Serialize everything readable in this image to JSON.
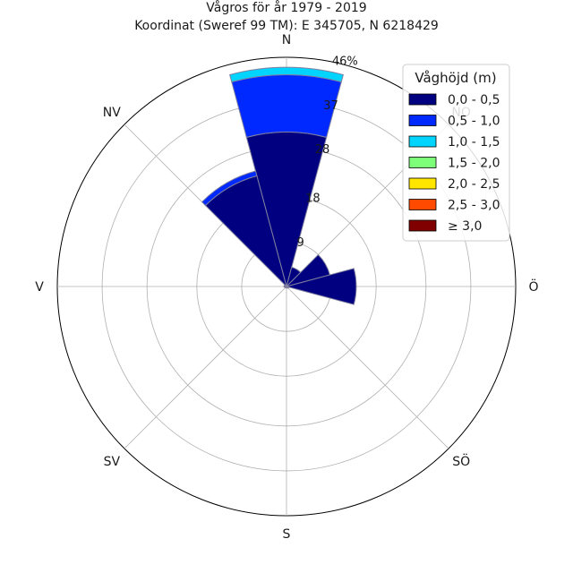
{
  "chart_data": {
    "type": "windrose",
    "title_line1": "Vågros för år 1979 - 2019",
    "title_line2": "Koordinat (Sweref 99 TM): E 345705, N 6218429",
    "directions": [
      "N",
      "NV",
      "V",
      "SV",
      "S",
      "SÖ",
      "Ö",
      "NO"
    ],
    "direction_angles_deg": [
      0,
      315,
      270,
      225,
      180,
      135,
      90,
      45
    ],
    "ring_values": [
      9,
      18,
      28,
      37,
      46
    ],
    "ring_labels": [
      "9",
      "18",
      "28",
      "37",
      "46%"
    ],
    "r_max": 46,
    "bin_width_deg": 30,
    "legend_title": "Våghöjd (m)",
    "legend_placement": "top-right",
    "bins": [
      {
        "label": "0,0 - 0,5",
        "color": "#000080"
      },
      {
        "label": "0,5 - 1,0",
        "color": "#0029ff"
      },
      {
        "label": "1,0 - 1,5",
        "color": "#00d4ff"
      },
      {
        "label": "1,5 - 2,0",
        "color": "#7dff7a"
      },
      {
        "label": "2,0 - 2,5",
        "color": "#ffe600"
      },
      {
        "label": "2,5 - 3,0",
        "color": "#ff4a00"
      },
      {
        "label": "≥ 3,0",
        "color": "#800000"
      }
    ],
    "sectors": [
      {
        "direction_deg": 0,
        "stacks": [
          31.0,
          11.5,
          1.5,
          0,
          0,
          0,
          0
        ]
      },
      {
        "direction_deg": 30,
        "stacks": [
          4.0,
          0,
          0,
          0,
          0,
          0,
          0
        ]
      },
      {
        "direction_deg": 60,
        "stacks": [
          9.0,
          0,
          0,
          0,
          0,
          0,
          0
        ]
      },
      {
        "direction_deg": 90,
        "stacks": [
          14.0,
          0,
          0,
          0,
          0,
          0,
          0
        ]
      },
      {
        "direction_deg": 120,
        "stacks": [
          0.5,
          0,
          0,
          0,
          0,
          0,
          0
        ]
      },
      {
        "direction_deg": 150,
        "stacks": [
          0.3,
          0,
          0,
          0,
          0,
          0,
          0
        ]
      },
      {
        "direction_deg": 180,
        "stacks": [
          0.3,
          0,
          0,
          0,
          0,
          0,
          0
        ]
      },
      {
        "direction_deg": 210,
        "stacks": [
          0.3,
          0,
          0,
          0,
          0,
          0,
          0
        ]
      },
      {
        "direction_deg": 240,
        "stacks": [
          0.3,
          0,
          0,
          0,
          0,
          0,
          0
        ]
      },
      {
        "direction_deg": 270,
        "stacks": [
          0.5,
          0,
          0,
          0,
          0,
          0,
          0
        ]
      },
      {
        "direction_deg": 300,
        "stacks": [
          0.5,
          0,
          0,
          0,
          0,
          0,
          0
        ]
      },
      {
        "direction_deg": 330,
        "stacks": [
          23.0,
          1.0,
          0,
          0,
          0,
          0,
          0
        ]
      }
    ],
    "grid": true
  }
}
